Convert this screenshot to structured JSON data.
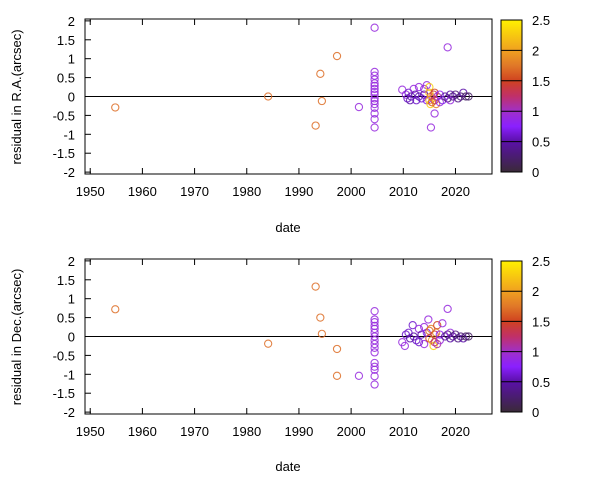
{
  "chart_data": [
    {
      "type": "scatter",
      "xlabel": "date",
      "ylabel": "residual in R.A.(arcsec)",
      "xlim": [
        1949,
        2027
      ],
      "ylim": [
        -2.05,
        2.05
      ],
      "xticks": [
        1950,
        1960,
        1970,
        1980,
        1990,
        2000,
        2010,
        2020
      ],
      "yticks": [
        2,
        1.5,
        1,
        0.5,
        0,
        -0.5,
        -1,
        -1.5,
        -2
      ],
      "zero_line": true,
      "colorbar": {
        "range": [
          0,
          2.5
        ],
        "ticks": [
          2.5,
          2,
          1.5,
          1,
          0.5,
          0
        ]
      },
      "points": [
        [
          1954.8,
          -0.29,
          1.7
        ],
        [
          1984.1,
          0.0,
          1.7
        ],
        [
          1993.2,
          -0.77,
          1.7
        ],
        [
          1994.1,
          0.6,
          1.7
        ],
        [
          1994.4,
          -0.12,
          1.7
        ],
        [
          1997.3,
          1.07,
          1.7
        ],
        [
          2001.5,
          -0.28,
          0.9
        ],
        [
          2004.5,
          1.82,
          0.9
        ],
        [
          2004.5,
          0.65,
          0.9
        ],
        [
          2004.5,
          0.55,
          0.9
        ],
        [
          2004.5,
          0.45,
          0.9
        ],
        [
          2004.5,
          0.35,
          0.9
        ],
        [
          2004.5,
          0.28,
          0.9
        ],
        [
          2004.5,
          0.2,
          0.9
        ],
        [
          2004.5,
          0.12,
          0.9
        ],
        [
          2004.5,
          0.05,
          0.9
        ],
        [
          2004.5,
          -0.05,
          0.9
        ],
        [
          2004.5,
          -0.12,
          0.9
        ],
        [
          2004.5,
          -0.2,
          0.9
        ],
        [
          2004.5,
          -0.3,
          0.9
        ],
        [
          2004.5,
          -0.45,
          0.9
        ],
        [
          2004.5,
          -0.6,
          0.9
        ],
        [
          2004.5,
          -0.82,
          0.9
        ],
        [
          2009.8,
          0.18,
          0.9
        ],
        [
          2010.5,
          0.05,
          0.9
        ],
        [
          2010.8,
          -0.05,
          0.6
        ],
        [
          2011,
          0.1,
          0.6
        ],
        [
          2011.3,
          -0.1,
          0.5
        ],
        [
          2011.5,
          0.0,
          0.5
        ],
        [
          2012,
          0.2,
          0.9
        ],
        [
          2012.3,
          0.05,
          0.5
        ],
        [
          2012.5,
          -0.1,
          0.6
        ],
        [
          2013,
          0.25,
          0.9
        ],
        [
          2013,
          0.0,
          0.55
        ],
        [
          2013.5,
          -0.05,
          0.6
        ],
        [
          2014,
          0.2,
          0.9
        ],
        [
          2014,
          0.05,
          0.5
        ],
        [
          2014.5,
          -0.1,
          0.7
        ],
        [
          2014.5,
          0.3,
          0.9
        ],
        [
          2015,
          0.25,
          2.3
        ],
        [
          2015,
          0.1,
          2.1
        ],
        [
          2015,
          -0.1,
          2.0
        ],
        [
          2015.2,
          -0.2,
          2.3
        ],
        [
          2015.3,
          0.0,
          1.9
        ],
        [
          2015.5,
          -0.15,
          1.6
        ],
        [
          2015.8,
          0.05,
          1.4
        ],
        [
          2016,
          0.1,
          1.5
        ],
        [
          2016,
          -0.1,
          1.3
        ],
        [
          2016.3,
          -0.2,
          1.8
        ],
        [
          2016,
          -0.45,
          0.9
        ],
        [
          2016.5,
          0.0,
          1.1
        ],
        [
          2017,
          0.05,
          0.8
        ],
        [
          2017,
          -0.15,
          0.9
        ],
        [
          2017.5,
          -0.1,
          0.7
        ],
        [
          2018,
          0.0,
          0.4
        ],
        [
          2018.5,
          -0.05,
          0.3
        ],
        [
          2019,
          0.05,
          0.5
        ],
        [
          2019,
          -0.1,
          0.9
        ],
        [
          2019.5,
          0.0,
          0.4
        ],
        [
          2020,
          0.05,
          0.3
        ],
        [
          2020.5,
          -0.05,
          0.35
        ],
        [
          2021,
          0.0,
          0.3
        ],
        [
          2021.5,
          0.1,
          0.5
        ],
        [
          2022,
          0.0,
          0.2
        ],
        [
          2022.5,
          0.0,
          0.2
        ],
        [
          2015.3,
          -0.82,
          0.9
        ],
        [
          2018.5,
          1.3,
          0.9
        ]
      ]
    },
    {
      "type": "scatter",
      "xlabel": "date",
      "ylabel": "residual in Dec.(arcsec)",
      "xlim": [
        1949,
        2027
      ],
      "ylim": [
        -2.05,
        2.05
      ],
      "xticks": [
        1950,
        1960,
        1970,
        1980,
        1990,
        2000,
        2010,
        2020
      ],
      "yticks": [
        2,
        1.5,
        1,
        0.5,
        0,
        -0.5,
        -1,
        -1.5,
        -2
      ],
      "zero_line": true,
      "colorbar": {
        "range": [
          0,
          2.5
        ],
        "ticks": [
          2.5,
          2,
          1.5,
          1,
          0.5,
          0
        ]
      },
      "points": [
        [
          1954.8,
          0.72,
          1.7
        ],
        [
          1984.1,
          -0.19,
          1.7
        ],
        [
          1993.2,
          1.32,
          1.7
        ],
        [
          1994.1,
          0.5,
          1.7
        ],
        [
          1994.4,
          0.07,
          1.7
        ],
        [
          1997.3,
          -0.33,
          1.7
        ],
        [
          1997.3,
          -1.04,
          1.7
        ],
        [
          2001.5,
          -1.04,
          0.9
        ],
        [
          2004.5,
          0.67,
          0.9
        ],
        [
          2004.5,
          0.45,
          0.9
        ],
        [
          2004.5,
          0.38,
          0.9
        ],
        [
          2004.5,
          0.28,
          0.9
        ],
        [
          2004.5,
          0.2,
          0.9
        ],
        [
          2004.5,
          0.1,
          0.9
        ],
        [
          2004.5,
          0.0,
          0.9
        ],
        [
          2004.5,
          -0.1,
          0.9
        ],
        [
          2004.5,
          -0.2,
          0.9
        ],
        [
          2004.5,
          -0.3,
          0.9
        ],
        [
          2004.5,
          -0.42,
          0.9
        ],
        [
          2004.5,
          -0.7,
          0.9
        ],
        [
          2004.5,
          -0.8,
          0.9
        ],
        [
          2004.5,
          -0.88,
          0.9
        ],
        [
          2004.5,
          -1.05,
          0.9
        ],
        [
          2004.5,
          -1.27,
          0.9
        ],
        [
          2009.8,
          -0.15,
          0.9
        ],
        [
          2010.3,
          -0.25,
          0.9
        ],
        [
          2010.5,
          0.05,
          0.6
        ],
        [
          2011,
          0.1,
          0.6
        ],
        [
          2011.3,
          -0.05,
          0.5
        ],
        [
          2011.8,
          0.3,
          0.6
        ],
        [
          2012,
          0.0,
          0.5
        ],
        [
          2012.5,
          -0.1,
          0.6
        ],
        [
          2013,
          0.2,
          0.9
        ],
        [
          2013,
          -0.15,
          0.6
        ],
        [
          2013.5,
          0.05,
          0.5
        ],
        [
          2014,
          0.25,
          0.9
        ],
        [
          2014,
          -0.2,
          0.9
        ],
        [
          2014.5,
          0.1,
          0.7
        ],
        [
          2014.8,
          0.45,
          0.9
        ],
        [
          2015,
          0.15,
          1.7
        ],
        [
          2015,
          -0.05,
          1.5
        ],
        [
          2015.3,
          0.2,
          1.8
        ],
        [
          2015.5,
          -0.1,
          2.0
        ],
        [
          2015.8,
          -0.25,
          2.3
        ],
        [
          2016,
          0.05,
          1.4
        ],
        [
          2016,
          -0.15,
          1.3
        ],
        [
          2016.3,
          0.1,
          1.8
        ],
        [
          2016.5,
          0.3,
          1.5
        ],
        [
          2016.5,
          -0.2,
          1.1
        ],
        [
          2017,
          0.05,
          0.8
        ],
        [
          2017,
          -0.1,
          0.9
        ],
        [
          2017.5,
          0.35,
          0.9
        ],
        [
          2018,
          0.0,
          0.4
        ],
        [
          2018.5,
          0.05,
          0.3
        ],
        [
          2019,
          -0.05,
          0.5
        ],
        [
          2019,
          0.1,
          0.9
        ],
        [
          2019.5,
          0.0,
          0.4
        ],
        [
          2020,
          0.05,
          0.3
        ],
        [
          2020.5,
          -0.05,
          0.35
        ],
        [
          2021,
          0.0,
          0.3
        ],
        [
          2021.5,
          -0.05,
          0.5
        ],
        [
          2022,
          0.0,
          0.2
        ],
        [
          2022.5,
          0.0,
          0.2
        ],
        [
          2018.5,
          0.73,
          0.9
        ]
      ]
    }
  ]
}
